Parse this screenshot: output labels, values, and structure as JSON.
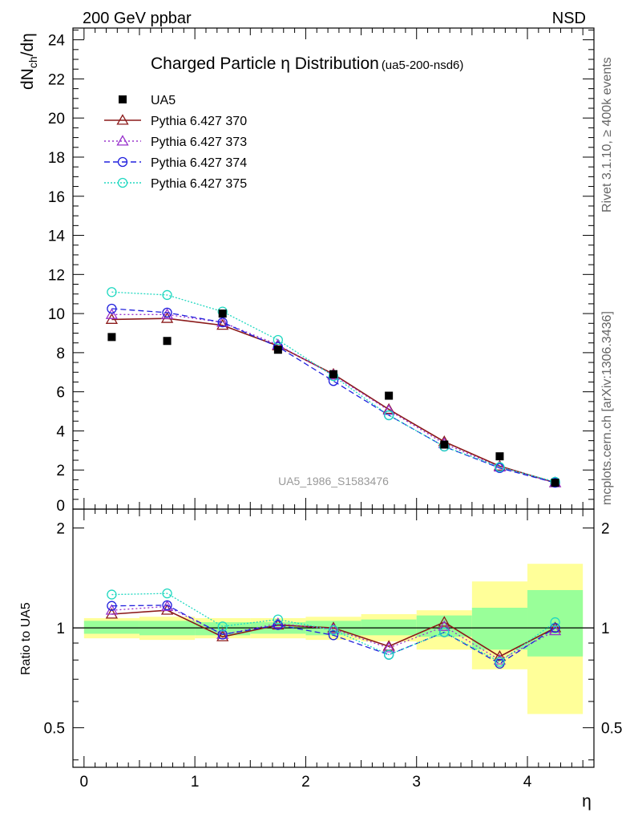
{
  "header": {
    "left_label": "200 GeV ppbar",
    "right_label": "NSD"
  },
  "side_labels": {
    "rivet": "Rivet 3.1.10, ≥ 400k events",
    "mcplots": "mcplots.cern.ch [arXiv:1306.3436]"
  },
  "watermark": "UA5_1986_S1583476",
  "chart_data": {
    "type": "scatter",
    "title": "Charged Particle η Distribution",
    "title_tag": "(ua5-200-nsd6)",
    "ylabel_main": "dN_ch/dη",
    "ylabel_ratio": "Ratio to UA5",
    "xlabel": "η",
    "xlim": [
      -0.1,
      4.6
    ],
    "ylim_main": [
      0,
      24.6
    ],
    "ylim_ratio": [
      0.38,
      2.28
    ],
    "x_ticks": [
      0,
      1,
      2,
      3,
      4
    ],
    "y_ticks_main": [
      0,
      2,
      4,
      6,
      8,
      10,
      12,
      14,
      16,
      18,
      20,
      22,
      24
    ],
    "y_ticks_ratio": [
      0.5,
      1,
      2
    ],
    "x": [
      0.25,
      0.75,
      1.25,
      1.75,
      2.25,
      2.75,
      3.25,
      3.75,
      4.25
    ],
    "data": {
      "name": "UA5",
      "color": "#000000",
      "values": [
        8.8,
        8.6,
        10.0,
        8.15,
        6.9,
        5.8,
        3.3,
        2.7,
        1.35
      ]
    },
    "bands": {
      "green": [
        [
          0.96,
          1.05
        ],
        [
          0.95,
          1.05
        ],
        [
          0.95,
          1.04
        ],
        [
          0.96,
          1.04
        ],
        [
          0.95,
          1.05
        ],
        [
          0.95,
          1.06
        ],
        [
          0.94,
          1.09
        ],
        [
          0.86,
          1.15
        ],
        [
          0.82,
          1.3
        ]
      ],
      "yellow": [
        [
          0.93,
          1.07
        ],
        [
          0.92,
          1.08
        ],
        [
          0.93,
          1.07
        ],
        [
          0.93,
          1.07
        ],
        [
          0.92,
          1.08
        ],
        [
          0.91,
          1.1
        ],
        [
          0.86,
          1.13
        ],
        [
          0.75,
          1.38
        ],
        [
          0.55,
          1.56
        ]
      ]
    },
    "series": [
      {
        "name": "Pythia 6.427 370",
        "color": "#8b1a1a",
        "marker": "triangle",
        "dash": "",
        "values": [
          9.7,
          9.75,
          9.4,
          8.35,
          6.9,
          5.1,
          3.45,
          2.2,
          1.35
        ],
        "ratio": [
          1.1,
          1.13,
          0.94,
          1.02,
          1.0,
          0.88,
          1.04,
          0.82,
          1.0
        ]
      },
      {
        "name": "Pythia 6.427 373",
        "color": "#9932cc",
        "marker": "triangle",
        "dash": "2,3",
        "values": [
          9.95,
          9.95,
          9.55,
          8.4,
          6.85,
          5.05,
          3.35,
          2.15,
          1.35
        ],
        "ratio": [
          1.13,
          1.16,
          0.955,
          1.03,
          0.99,
          0.87,
          1.01,
          0.8,
          0.98
        ]
      },
      {
        "name": "Pythia 6.427 374",
        "color": "#2020dd",
        "marker": "circle",
        "dash": "7,4",
        "values": [
          10.25,
          10.05,
          9.55,
          8.3,
          6.55,
          4.8,
          3.2,
          2.1,
          1.35
        ],
        "ratio": [
          1.165,
          1.17,
          0.955,
          1.02,
          0.95,
          0.83,
          0.97,
          0.78,
          1.0
        ]
      },
      {
        "name": "Pythia 6.427 375",
        "color": "#20d8c0",
        "marker": "circle",
        "dash": "2,2",
        "values": [
          11.1,
          10.95,
          10.1,
          8.65,
          6.8,
          4.8,
          3.2,
          2.15,
          1.4
        ],
        "ratio": [
          1.26,
          1.27,
          1.01,
          1.06,
          0.985,
          0.83,
          0.97,
          0.79,
          1.04
        ]
      }
    ],
    "legend": "top-left"
  }
}
